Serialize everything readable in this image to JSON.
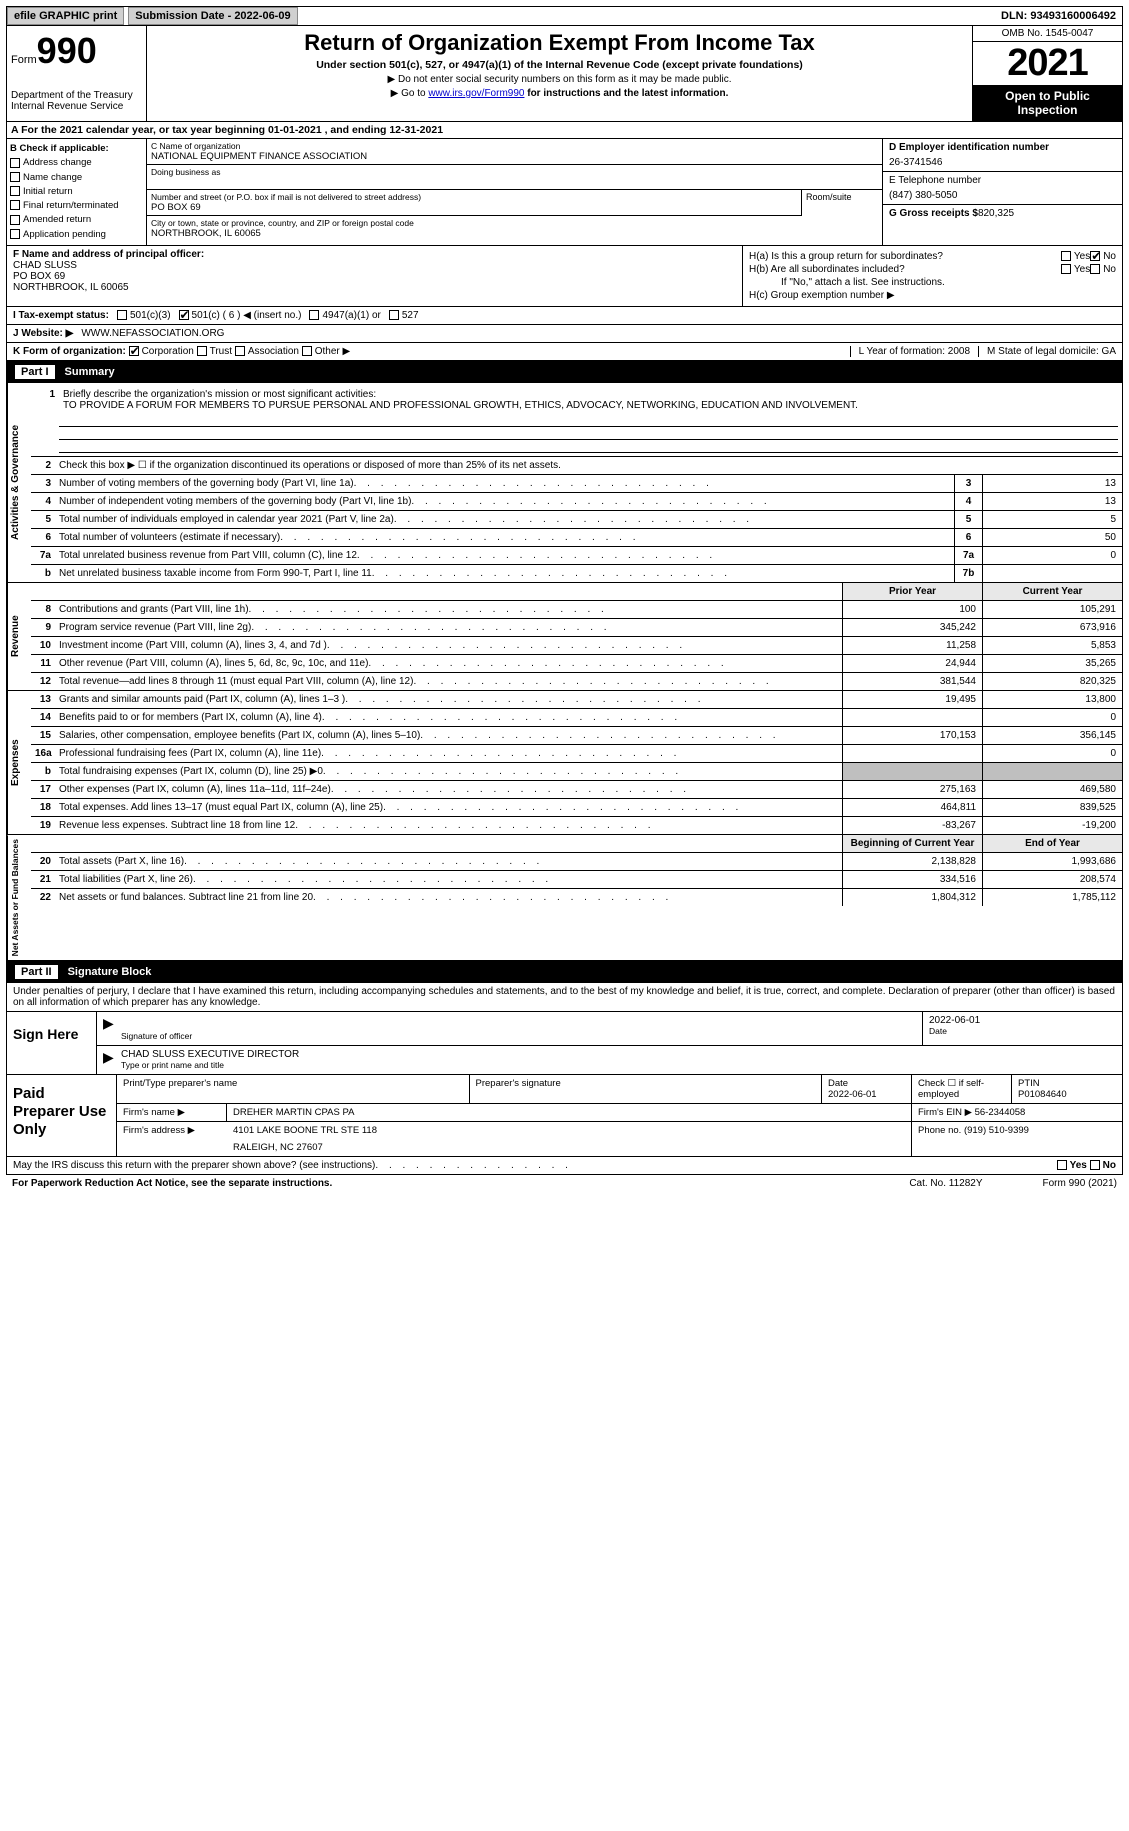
{
  "topbar": {
    "efile": "efile GRAPHIC print",
    "submission_label": "Submission Date - 2022-06-09",
    "dln": "DLN: 93493160006492"
  },
  "header": {
    "form_word": "Form",
    "form_num": "990",
    "dept": "Department of the Treasury",
    "irs": "Internal Revenue Service",
    "title": "Return of Organization Exempt From Income Tax",
    "subtitle": "Under section 501(c), 527, or 4947(a)(1) of the Internal Revenue Code (except private foundations)",
    "note1": "▶ Do not enter social security numbers on this form as it may be made public.",
    "note2_pre": "▶ Go to ",
    "note2_link": "www.irs.gov/Form990",
    "note2_post": " for instructions and the latest information.",
    "omb": "OMB No. 1545-0047",
    "year": "2021",
    "open": "Open to Public Inspection"
  },
  "row_a": {
    "text": "A For the 2021 calendar year, or tax year beginning 01-01-2021    , and ending 12-31-2021"
  },
  "col_b": {
    "label": "B Check if applicable:",
    "items": [
      "Address change",
      "Name change",
      "Initial return",
      "Final return/terminated",
      "Amended return",
      "Application pending"
    ]
  },
  "col_c": {
    "name_label": "C Name of organization",
    "name": "NATIONAL EQUIPMENT FINANCE ASSOCIATION",
    "dba_label": "Doing business as",
    "addr_label": "Number and street (or P.O. box if mail is not delivered to street address)",
    "room_label": "Room/suite",
    "addr": "PO BOX 69",
    "city_label": "City or town, state or province, country, and ZIP or foreign postal code",
    "city": "NORTHBROOK, IL  60065"
  },
  "col_de": {
    "d_label": "D Employer identification number",
    "d_val": "26-3741546",
    "e_label": "E Telephone number",
    "e_val": "(847) 380-5050",
    "g_label": "G Gross receipts $",
    "g_val": "820,325"
  },
  "col_f": {
    "label": "F  Name and address of principal officer:",
    "name": "CHAD SLUSS",
    "addr1": "PO BOX 69",
    "addr2": "NORTHBROOK, IL  60065"
  },
  "col_h": {
    "ha": "H(a)  Is this a group return for subordinates?",
    "hb": "H(b)  Are all subordinates included?",
    "hb_note": "If \"No,\" attach a list. See instructions.",
    "hc": "H(c)  Group exemption number ▶",
    "yes": "Yes",
    "no": "No"
  },
  "row_i": {
    "label": "I   Tax-exempt status:",
    "opts": [
      "501(c)(3)",
      "501(c) ( 6 ) ◀ (insert no.)",
      "4947(a)(1) or",
      "527"
    ]
  },
  "row_j": {
    "label": "J   Website: ▶",
    "val": "WWW.NEFASSOCIATION.ORG"
  },
  "row_k": {
    "label": "K Form of organization:",
    "opts": [
      "Corporation",
      "Trust",
      "Association",
      "Other ▶"
    ],
    "l": "L Year of formation: 2008",
    "m": "M State of legal domicile: GA"
  },
  "part1": {
    "num": "Part I",
    "title": "Summary"
  },
  "mission": {
    "n": "1",
    "label": "Briefly describe the organization's mission or most significant activities:",
    "text": "TO PROVIDE A FORUM FOR MEMBERS TO PURSUE PERSONAL AND PROFESSIONAL GROWTH, ETHICS, ADVOCACY, NETWORKING, EDUCATION AND INVOLVEMENT."
  },
  "gov_rows": [
    {
      "n": "2",
      "t": "Check this box ▶ ☐ if the organization discontinued its operations or disposed of more than 25% of its net assets.",
      "box": "",
      "v": ""
    },
    {
      "n": "3",
      "t": "Number of voting members of the governing body (Part VI, line 1a)",
      "box": "3",
      "v": "13"
    },
    {
      "n": "4",
      "t": "Number of independent voting members of the governing body (Part VI, line 1b)",
      "box": "4",
      "v": "13"
    },
    {
      "n": "5",
      "t": "Total number of individuals employed in calendar year 2021 (Part V, line 2a)",
      "box": "5",
      "v": "5"
    },
    {
      "n": "6",
      "t": "Total number of volunteers (estimate if necessary)",
      "box": "6",
      "v": "50"
    },
    {
      "n": "7a",
      "t": "Total unrelated business revenue from Part VIII, column (C), line 12",
      "box": "7a",
      "v": "0"
    },
    {
      "n": "b",
      "t": "Net unrelated business taxable income from Form 990-T, Part I, line 11",
      "box": "7b",
      "v": ""
    }
  ],
  "col_hdr": {
    "py": "Prior Year",
    "cy": "Current Year"
  },
  "rev_rows": [
    {
      "n": "8",
      "t": "Contributions and grants (Part VIII, line 1h)",
      "py": "100",
      "cy": "105,291"
    },
    {
      "n": "9",
      "t": "Program service revenue (Part VIII, line 2g)",
      "py": "345,242",
      "cy": "673,916"
    },
    {
      "n": "10",
      "t": "Investment income (Part VIII, column (A), lines 3, 4, and 7d )",
      "py": "11,258",
      "cy": "5,853"
    },
    {
      "n": "11",
      "t": "Other revenue (Part VIII, column (A), lines 5, 6d, 8c, 9c, 10c, and 11e)",
      "py": "24,944",
      "cy": "35,265"
    },
    {
      "n": "12",
      "t": "Total revenue—add lines 8 through 11 (must equal Part VIII, column (A), line 12)",
      "py": "381,544",
      "cy": "820,325"
    }
  ],
  "exp_rows": [
    {
      "n": "13",
      "t": "Grants and similar amounts paid (Part IX, column (A), lines 1–3 )",
      "py": "19,495",
      "cy": "13,800"
    },
    {
      "n": "14",
      "t": "Benefits paid to or for members (Part IX, column (A), line 4)",
      "py": "",
      "cy": "0"
    },
    {
      "n": "15",
      "t": "Salaries, other compensation, employee benefits (Part IX, column (A), lines 5–10)",
      "py": "170,153",
      "cy": "356,145"
    },
    {
      "n": "16a",
      "t": "Professional fundraising fees (Part IX, column (A), line 11e)",
      "py": "",
      "cy": "0"
    },
    {
      "n": "b",
      "t": "Total fundraising expenses (Part IX, column (D), line 25) ▶0",
      "py": "grey",
      "cy": "grey"
    },
    {
      "n": "17",
      "t": "Other expenses (Part IX, column (A), lines 11a–11d, 11f–24e)",
      "py": "275,163",
      "cy": "469,580"
    },
    {
      "n": "18",
      "t": "Total expenses. Add lines 13–17 (must equal Part IX, column (A), line 25)",
      "py": "464,811",
      "cy": "839,525"
    },
    {
      "n": "19",
      "t": "Revenue less expenses. Subtract line 18 from line 12",
      "py": "-83,267",
      "cy": "-19,200"
    }
  ],
  "na_hdr": {
    "by": "Beginning of Current Year",
    "ey": "End of Year"
  },
  "na_rows": [
    {
      "n": "20",
      "t": "Total assets (Part X, line 16)",
      "py": "2,138,828",
      "cy": "1,993,686"
    },
    {
      "n": "21",
      "t": "Total liabilities (Part X, line 26)",
      "py": "334,516",
      "cy": "208,574"
    },
    {
      "n": "22",
      "t": "Net assets or fund balances. Subtract line 21 from line 20",
      "py": "1,804,312",
      "cy": "1,785,112"
    }
  ],
  "vtabs": {
    "gov": "Activities & Governance",
    "rev": "Revenue",
    "exp": "Expenses",
    "na": "Net Assets or Fund Balances"
  },
  "part2": {
    "num": "Part II",
    "title": "Signature Block"
  },
  "sig": {
    "penalties": "Under penalties of perjury, I declare that I have examined this return, including accompanying schedules and statements, and to the best of my knowledge and belief, it is true, correct, and complete. Declaration of preparer (other than officer) is based on all information of which preparer has any knowledge.",
    "sign_here": "Sign Here",
    "sig_officer": "Signature of officer",
    "date": "2022-06-01",
    "date_label": "Date",
    "name_title": "CHAD SLUSS  EXECUTIVE DIRECTOR",
    "name_label": "Type or print name and title"
  },
  "prep": {
    "label": "Paid Preparer Use Only",
    "r1": {
      "c1": "Print/Type preparer's name",
      "c2": "Preparer's signature",
      "c3": "Date\n2022-06-01",
      "c4": "Check ☐ if self-employed",
      "c5": "PTIN\nP01084640"
    },
    "r2": {
      "c1": "Firm's name    ▶",
      "c2": "DREHER MARTIN CPAS PA",
      "c3": "Firm's EIN ▶ 56-2344058"
    },
    "r3": {
      "c1": "Firm's address ▶",
      "c2": "4101 LAKE BOONE TRL STE 118",
      "c3": "Phone no. (919) 510-9399"
    },
    "r3b": "RALEIGH, NC  27607"
  },
  "discuss": {
    "text": "May the IRS discuss this return with the preparer shown above? (see instructions)",
    "yes": "Yes",
    "no": "No"
  },
  "foot": {
    "left": "For Paperwork Reduction Act Notice, see the separate instructions.",
    "mid": "Cat. No. 11282Y",
    "right": "Form 990 (2021)"
  }
}
